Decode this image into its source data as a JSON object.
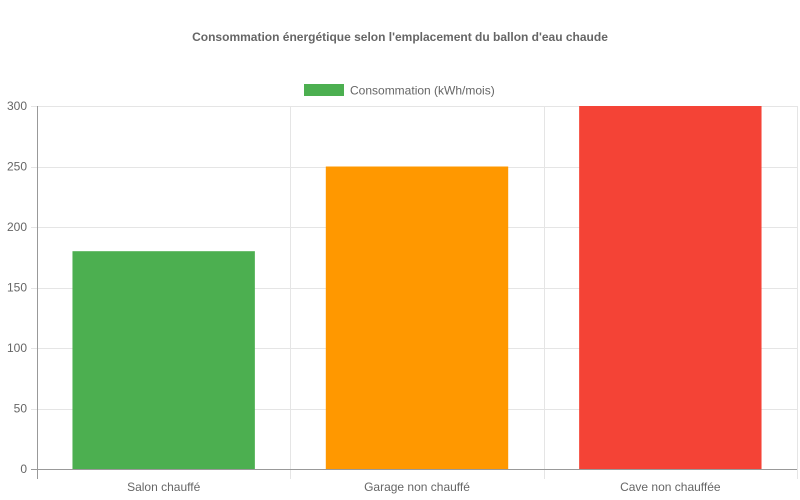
{
  "chart_data": {
    "type": "bar",
    "title": "Consommation énergétique selon l'emplacement du ballon d'eau chaude",
    "categories": [
      "Salon chauffé",
      "Garage non chauffé",
      "Cave non chauffée"
    ],
    "series": [
      {
        "name": "Consommation (kWh/mois)",
        "values": [
          180,
          250,
          300
        ],
        "colors": [
          "#4caf50",
          "#ff9800",
          "#f44336"
        ]
      }
    ],
    "ylim": [
      0,
      300
    ],
    "yticks": [
      0,
      50,
      100,
      150,
      200,
      250,
      300
    ],
    "grid": true,
    "legend_position": "top-center",
    "legend_swatch_color": "#4caf50"
  }
}
